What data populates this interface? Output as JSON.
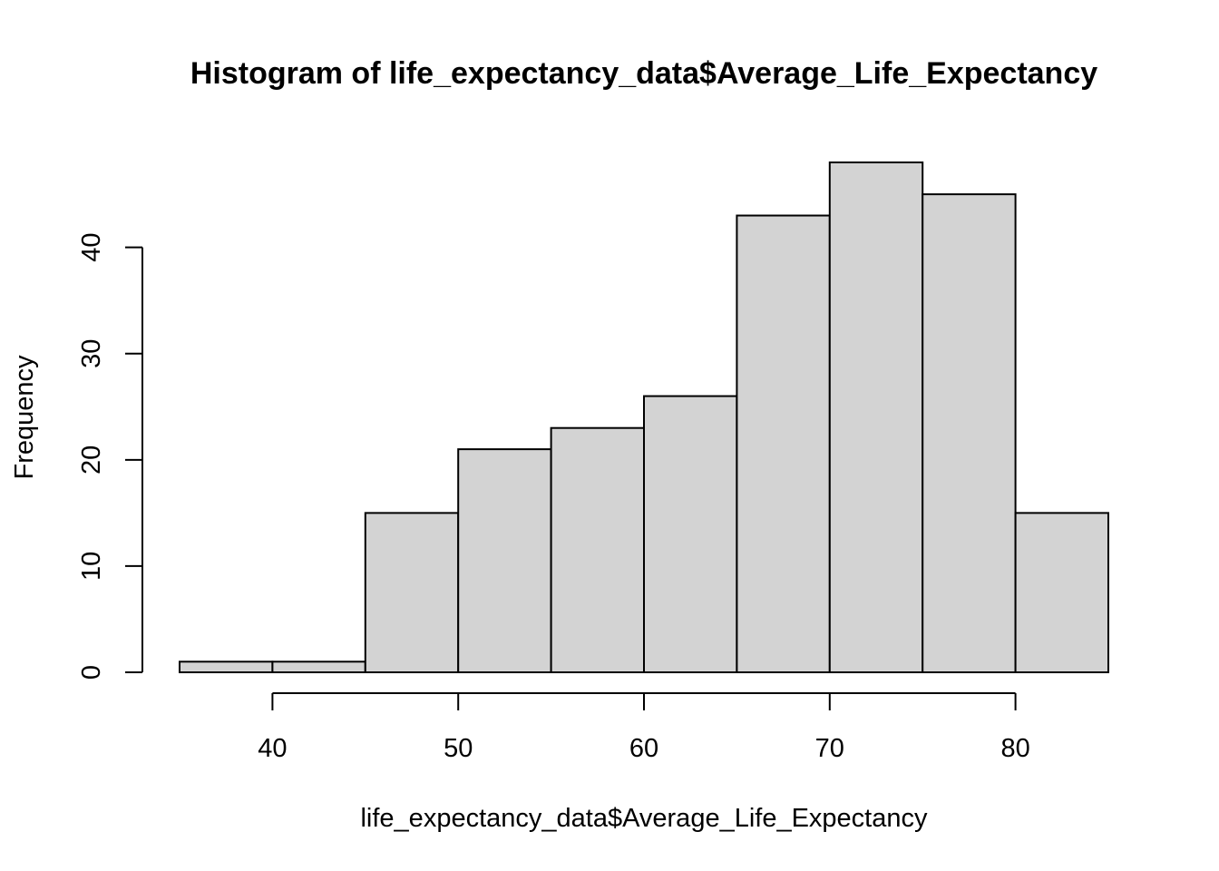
{
  "chart_data": {
    "type": "bar",
    "title": "Histogram of life_expectancy_data$Average_Life_Expectancy",
    "xlabel": "life_expectancy_data$Average_Life_Expectancy",
    "ylabel": "Frequency",
    "bins": [
      {
        "from": 35,
        "to": 40,
        "count": 1
      },
      {
        "from": 40,
        "to": 45,
        "count": 1
      },
      {
        "from": 45,
        "to": 50,
        "count": 15
      },
      {
        "from": 50,
        "to": 55,
        "count": 21
      },
      {
        "from": 55,
        "to": 60,
        "count": 23
      },
      {
        "from": 60,
        "to": 65,
        "count": 26
      },
      {
        "from": 65,
        "to": 70,
        "count": 43
      },
      {
        "from": 70,
        "to": 75,
        "count": 48
      },
      {
        "from": 75,
        "to": 80,
        "count": 45
      },
      {
        "from": 80,
        "to": 85,
        "count": 15
      }
    ],
    "xlim": [
      35,
      85
    ],
    "ylim": [
      0,
      48
    ],
    "x_ticks": [
      40,
      50,
      60,
      70,
      80
    ],
    "y_ticks": [
      0,
      10,
      20,
      30,
      40
    ],
    "bar_color": "#d3d3d3",
    "grid": false
  }
}
